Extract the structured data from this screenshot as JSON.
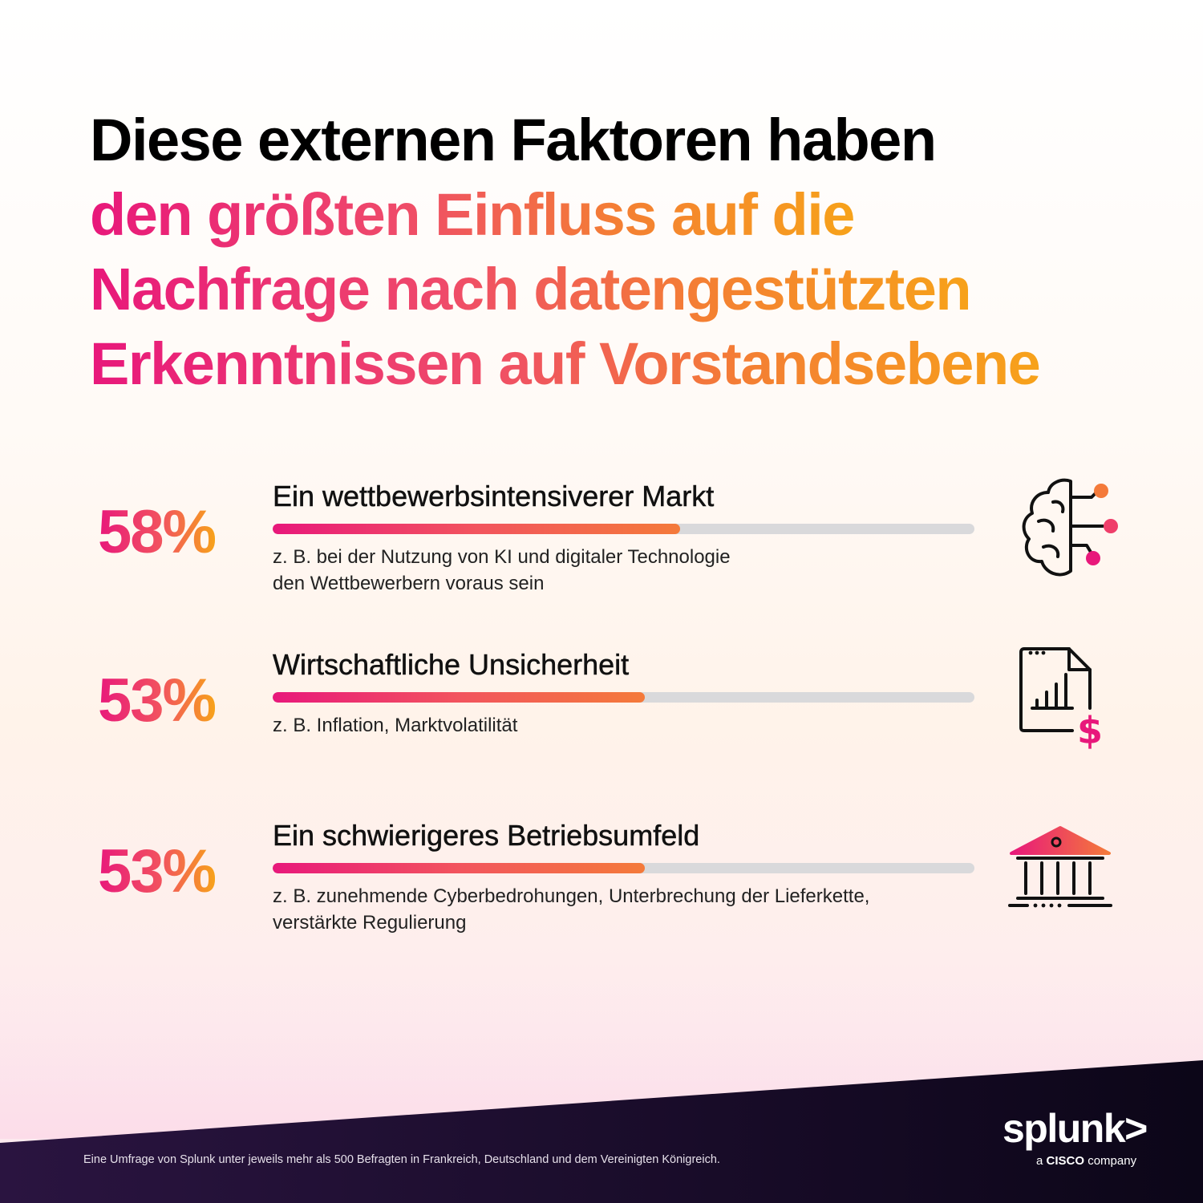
{
  "headline": {
    "line1": "Diese externen Faktoren haben",
    "line2": "den größten Einfluss auf die",
    "line3": "Nachfrage nach datengestützten",
    "line4": "Erkenntnissen auf Vorstandsebene"
  },
  "factors": [
    {
      "percent_label": "58%",
      "value": 58,
      "title": "Ein wettbewerbsintensiverer Markt",
      "description": "z. B. bei der Nutzung von KI und digitaler Technologie\nden Wettbewerbern voraus sein",
      "icon": "brain-network-icon"
    },
    {
      "percent_label": "53%",
      "value": 53,
      "title": "Wirtschaftliche Unsicherheit",
      "description": "z. B. Inflation, Marktvolatilität",
      "icon": "financial-report-icon"
    },
    {
      "percent_label": "53%",
      "value": 53,
      "title": "Ein schwierigeres Betriebsumfeld",
      "description": "z. B. zunehmende Cyberbedrohungen, Unterbrechung der Lieferkette,\nverstärkte Regulierung",
      "icon": "bank-building-icon"
    }
  ],
  "footer": {
    "note": "Eine Umfrage von Splunk unter jeweils mehr als 500 Befragten in Frankreich, Deutschland und dem Vereinigten Königreich.",
    "logo": "splunk>",
    "tagline_a": "a",
    "tagline_brand": "CISCO",
    "tagline_b": "company"
  },
  "colors": {
    "accent_pink": "#e8187b",
    "accent_orange": "#f7a21a",
    "track_gray": "#d9d9db",
    "footer_dark": "#1a0c2c"
  }
}
